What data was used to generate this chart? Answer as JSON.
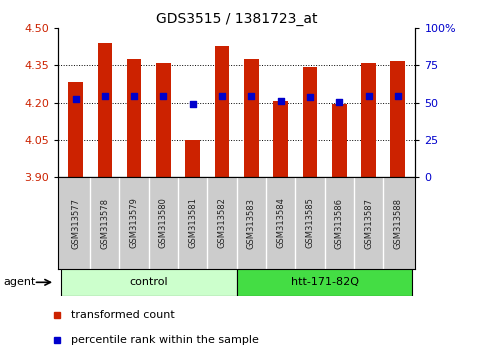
{
  "title": "GDS3515 / 1381723_at",
  "samples": [
    "GSM313577",
    "GSM313578",
    "GSM313579",
    "GSM313580",
    "GSM313581",
    "GSM313582",
    "GSM313583",
    "GSM313584",
    "GSM313585",
    "GSM313586",
    "GSM313587",
    "GSM313588"
  ],
  "bar_tops": [
    4.285,
    4.44,
    4.375,
    4.36,
    4.05,
    4.43,
    4.375,
    4.205,
    4.345,
    4.195,
    4.36,
    4.37
  ],
  "blue_dots": [
    4.215,
    4.225,
    4.225,
    4.225,
    4.196,
    4.225,
    4.225,
    4.207,
    4.222,
    4.203,
    4.225,
    4.225
  ],
  "bar_bottom": 3.9,
  "ylim": [
    3.9,
    4.5
  ],
  "yticks_left": [
    3.9,
    4.05,
    4.2,
    4.35,
    4.5
  ],
  "yticks_right_vals": [
    0,
    25,
    50,
    75,
    100
  ],
  "yticks_right_pos": [
    3.9,
    4.05,
    4.2,
    4.35,
    4.5
  ],
  "bar_color": "#CC2200",
  "dot_color": "#0000CC",
  "groups": [
    {
      "label": "control",
      "start": 0,
      "end": 6,
      "color": "#CCFFCC"
    },
    {
      "label": "htt-171-82Q",
      "start": 6,
      "end": 12,
      "color": "#44DD44"
    }
  ],
  "agent_label": "agent",
  "legend_items": [
    {
      "color": "#CC2200",
      "label": "transformed count"
    },
    {
      "color": "#0000CC",
      "label": "percentile rank within the sample"
    }
  ],
  "grid_color": "black",
  "bar_width": 0.5,
  "left_tick_color": "#CC2200",
  "right_tick_color": "#0000CC",
  "label_bg_color": "#CCCCCC",
  "title_fontsize": 10,
  "tick_fontsize": 8,
  "sample_fontsize": 6,
  "legend_fontsize": 8,
  "group_fontsize": 8
}
